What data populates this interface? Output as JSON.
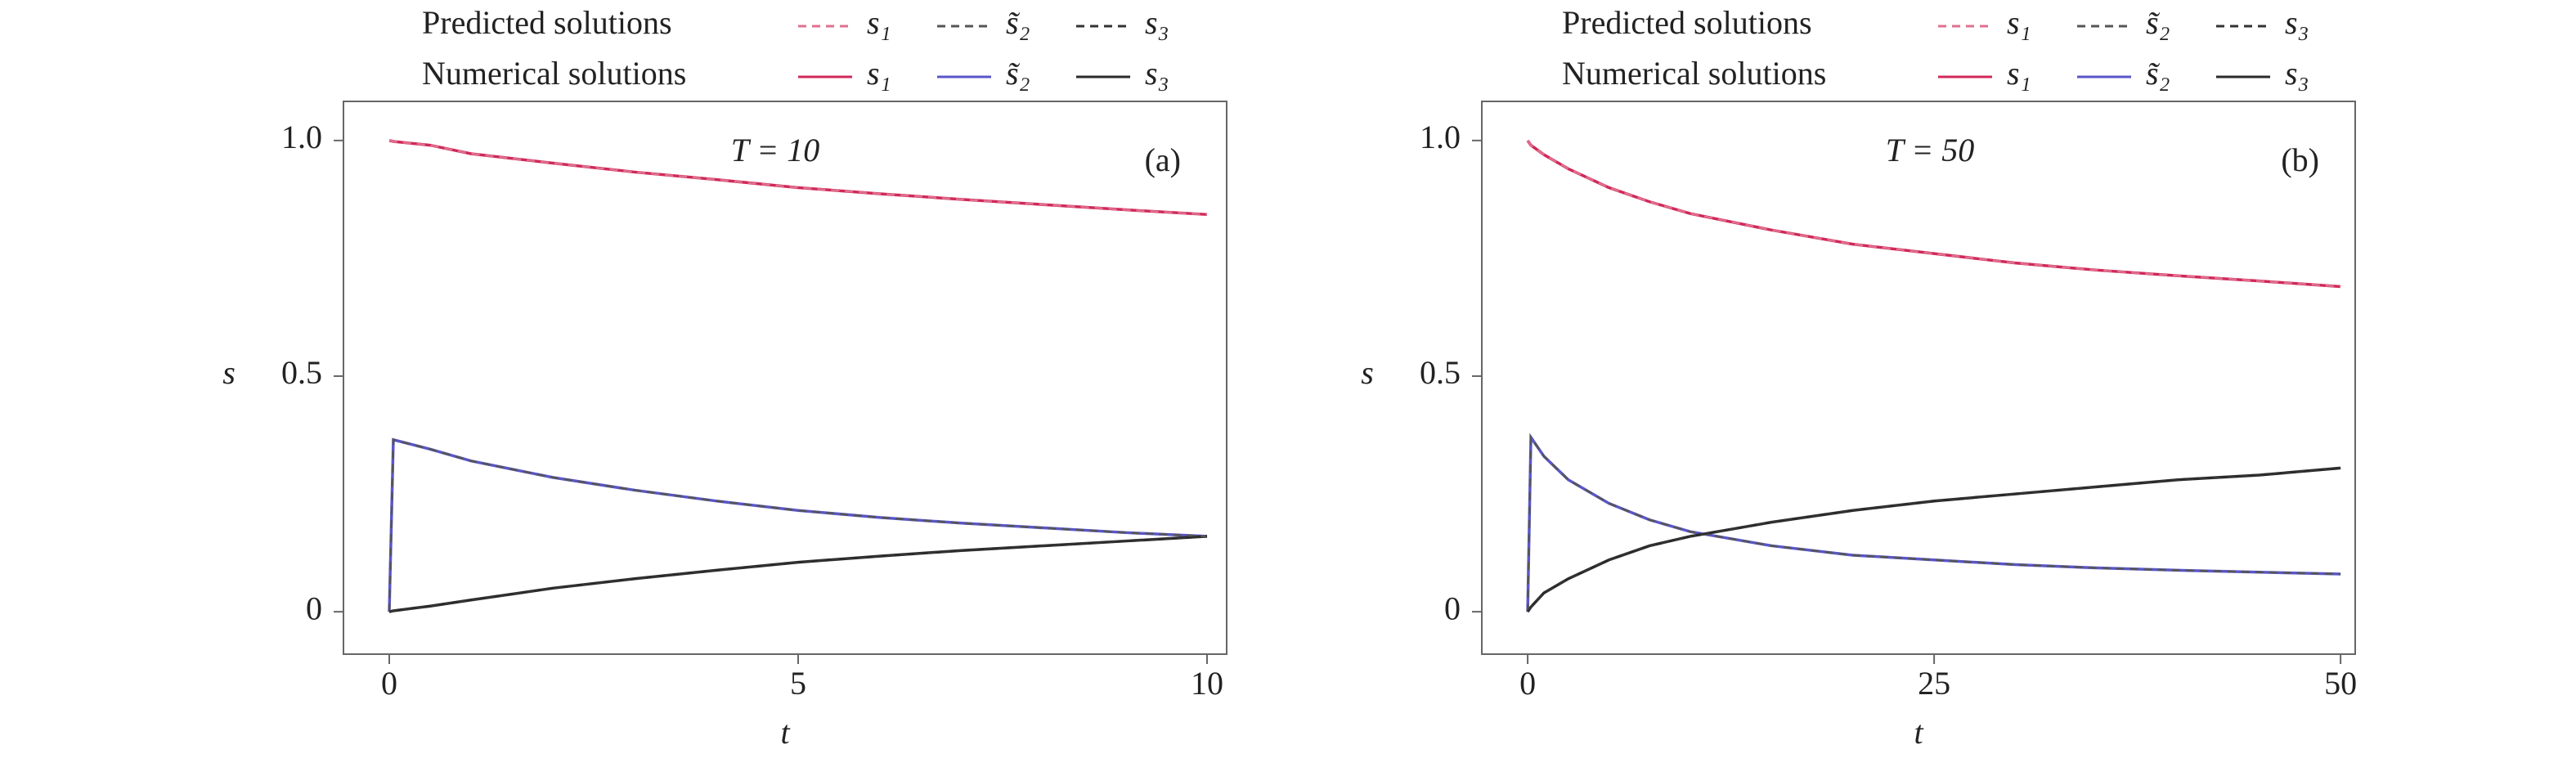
{
  "chart_data": [
    {
      "type": "line",
      "annotation": "T = 10",
      "panel_label": "(a)",
      "x_label": "t",
      "y_label": "s",
      "xlim": [
        -0.56,
        10.24
      ],
      "xticks": [
        0,
        5,
        10
      ],
      "ylim": [
        -0.09,
        1.083
      ],
      "yticks": [
        0,
        0.5,
        {
          "value": 1,
          "label": "1.0"
        }
      ],
      "x": [
        0,
        0.05,
        0.5,
        1,
        2,
        3,
        4,
        5,
        6,
        7,
        8,
        9,
        10
      ],
      "series_groups": [
        {
          "label": "Predicted solutions",
          "style": "dashed",
          "series": [
            {
              "name": "s₁",
              "color": "#e0708e",
              "values": [
                1,
                0.998,
                0.99,
                0.972,
                0.952,
                0.933,
                0.917,
                0.9,
                0.887,
                0.875,
                0.864,
                0.853,
                0.843
              ]
            },
            {
              "name": "s̃₂",
              "color": "#555",
              "values": [
                0,
                0.365,
                0.345,
                0.32,
                0.285,
                0.258,
                0.235,
                0.215,
                0.2,
                0.188,
                0.178,
                0.168,
                0.16
              ]
            },
            {
              "name": "s₃",
              "color": "#333",
              "values": [
                0,
                0.002,
                0.012,
                0.025,
                0.05,
                0.07,
                0.088,
                0.105,
                0.118,
                0.13,
                0.14,
                0.15,
                0.16
              ]
            }
          ]
        },
        {
          "label": "Numerical solutions",
          "style": "solid",
          "series": [
            {
              "name": "s₁",
              "color": "#d0285a",
              "values": [
                1,
                0.998,
                0.99,
                0.972,
                0.952,
                0.933,
                0.917,
                0.9,
                0.887,
                0.875,
                0.864,
                0.853,
                0.843
              ]
            },
            {
              "name": "s̃₂",
              "color": "#5a56c8",
              "values": [
                0,
                0.365,
                0.345,
                0.32,
                0.285,
                0.258,
                0.235,
                0.215,
                0.2,
                0.188,
                0.178,
                0.168,
                0.16
              ]
            },
            {
              "name": "s₃",
              "color": "#2a2a2a",
              "values": [
                0,
                0.002,
                0.012,
                0.025,
                0.05,
                0.07,
                0.088,
                0.105,
                0.118,
                0.13,
                0.14,
                0.15,
                0.16
              ]
            }
          ]
        }
      ]
    },
    {
      "type": "line",
      "annotation": "T = 50",
      "panel_label": "(b)",
      "x_label": "t",
      "y_label": "s",
      "xlim": [
        -2.82,
        50.9
      ],
      "xticks": [
        0,
        25,
        50
      ],
      "ylim": [
        -0.09,
        1.083
      ],
      "yticks": [
        0,
        0.5,
        {
          "value": 1,
          "label": "1.0"
        }
      ],
      "x": [
        0,
        0.2,
        1,
        2.5,
        5,
        7.5,
        10,
        15,
        20,
        25,
        30,
        35,
        40,
        45,
        50
      ],
      "series_groups": [
        {
          "label": "Predicted solutions",
          "style": "dashed",
          "series": [
            {
              "name": "s₁",
              "color": "#e0708e",
              "values": [
                1,
                0.99,
                0.97,
                0.94,
                0.9,
                0.87,
                0.845,
                0.81,
                0.78,
                0.76,
                0.74,
                0.725,
                0.713,
                0.702,
                0.69
              ]
            },
            {
              "name": "s̃₂",
              "color": "#555",
              "values": [
                0,
                0.37,
                0.33,
                0.28,
                0.23,
                0.195,
                0.17,
                0.14,
                0.12,
                0.11,
                0.1,
                0.093,
                0.088,
                0.084,
                0.08
              ]
            },
            {
              "name": "s₃",
              "color": "#333",
              "values": [
                0,
                0.01,
                0.04,
                0.07,
                0.11,
                0.14,
                0.16,
                0.19,
                0.215,
                0.235,
                0.25,
                0.265,
                0.28,
                0.29,
                0.305
              ]
            }
          ]
        },
        {
          "label": "Numerical solutions",
          "style": "solid",
          "series": [
            {
              "name": "s₁",
              "color": "#d0285a",
              "values": [
                1,
                0.99,
                0.97,
                0.94,
                0.9,
                0.87,
                0.845,
                0.81,
                0.78,
                0.76,
                0.74,
                0.725,
                0.713,
                0.702,
                0.69
              ]
            },
            {
              "name": "s̃₂",
              "color": "#5a56c8",
              "values": [
                0,
                0.37,
                0.33,
                0.28,
                0.23,
                0.195,
                0.17,
                0.14,
                0.12,
                0.11,
                0.1,
                0.093,
                0.088,
                0.084,
                0.08
              ]
            },
            {
              "name": "s₃",
              "color": "#2a2a2a",
              "values": [
                0,
                0.01,
                0.04,
                0.07,
                0.11,
                0.14,
                0.16,
                0.19,
                0.215,
                0.235,
                0.25,
                0.265,
                0.28,
                0.29,
                0.305
              ]
            }
          ]
        }
      ]
    }
  ]
}
